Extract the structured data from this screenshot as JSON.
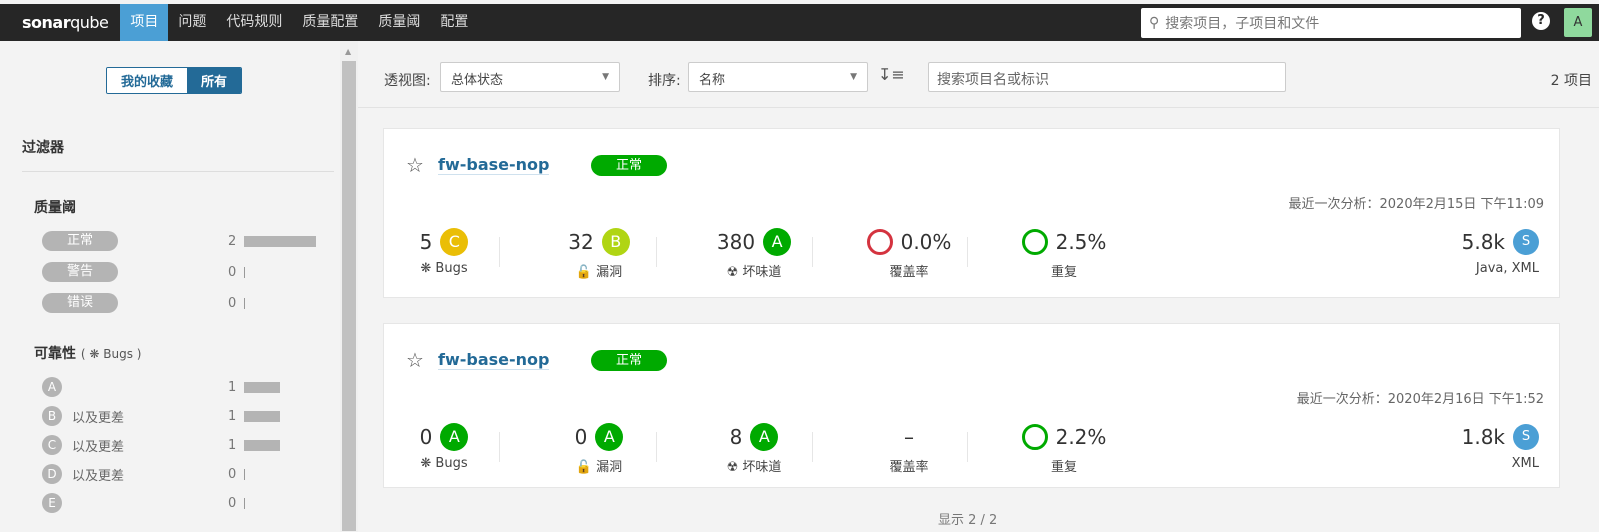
{
  "topbar": {
    "logo_a": "sonar",
    "logo_b": "qube",
    "nav": [
      "项目",
      "问题",
      "代码规则",
      "质量配置",
      "质量阈",
      "配置"
    ],
    "active": 0,
    "search_placeholder": "搜索项目，子项目和文件",
    "help": "?",
    "avatar": "A"
  },
  "sidebar": {
    "toggle": [
      "我的收藏",
      "所有"
    ],
    "filters_title": "过滤器",
    "quality_gate": {
      "title": "质量阈",
      "items": [
        {
          "label": "正常",
          "count": "2",
          "fraction": 1
        },
        {
          "label": "警告",
          "count": "0",
          "fraction": 0
        },
        {
          "label": "错误",
          "count": "0",
          "fraction": 0
        }
      ]
    },
    "reliability": {
      "title": "可靠性",
      "sub": "Bugs",
      "items": [
        {
          "rating": "A",
          "label": "",
          "count": "1",
          "fraction": 0.5
        },
        {
          "rating": "B",
          "label": "以及更差",
          "count": "1",
          "fraction": 0.5
        },
        {
          "rating": "C",
          "label": "以及更差",
          "count": "1",
          "fraction": 0.5
        },
        {
          "rating": "D",
          "label": "以及更差",
          "count": "0",
          "fraction": 0
        },
        {
          "rating": "E",
          "label": "",
          "count": "0",
          "fraction": 0
        }
      ]
    }
  },
  "toolbar": {
    "view_label": "透视图:",
    "view_value": "总体状态",
    "sort_label": "排序:",
    "sort_value": "名称",
    "search_placeholder": "搜索项目名或标识",
    "count": "2 项目"
  },
  "projects": [
    {
      "name": "fw-base-nop",
      "gate": "正常",
      "date": "最近一次分析：2020年2月15日 下午11:09",
      "bugs": "5",
      "bugs_r": "C",
      "vuln": "32",
      "vuln_r": "B",
      "smells": "380",
      "smells_r": "A",
      "coverage": "0.0%",
      "dup": "2.5%",
      "size": "5.8k",
      "size_r": "S",
      "langs": "Java, XML"
    },
    {
      "name": "fw-base-nop",
      "gate": "正常",
      "date": "最近一次分析：2020年2月16日 下午1:52",
      "bugs": "0",
      "bugs_r": "A",
      "vuln": "0",
      "vuln_r": "A",
      "smells": "8",
      "smells_r": "A",
      "coverage": "–",
      "dup": "2.2%",
      "size": "1.8k",
      "size_r": "S",
      "langs": "XML"
    }
  ],
  "labels": {
    "bugs": "Bugs",
    "vuln": "漏洞",
    "smells": "坏味道",
    "coverage": "覆盖率",
    "dup": "重复"
  },
  "footer": "显示 2 / 2",
  "colors": {
    "A": "#00aa00",
    "B": "#b0d513",
    "C": "#eabe06",
    "coverage_ring": "#d4333f",
    "dup_ring": "#00aa00",
    "gate_ok": "#00aa00",
    "accent": "#4b9fd5"
  }
}
